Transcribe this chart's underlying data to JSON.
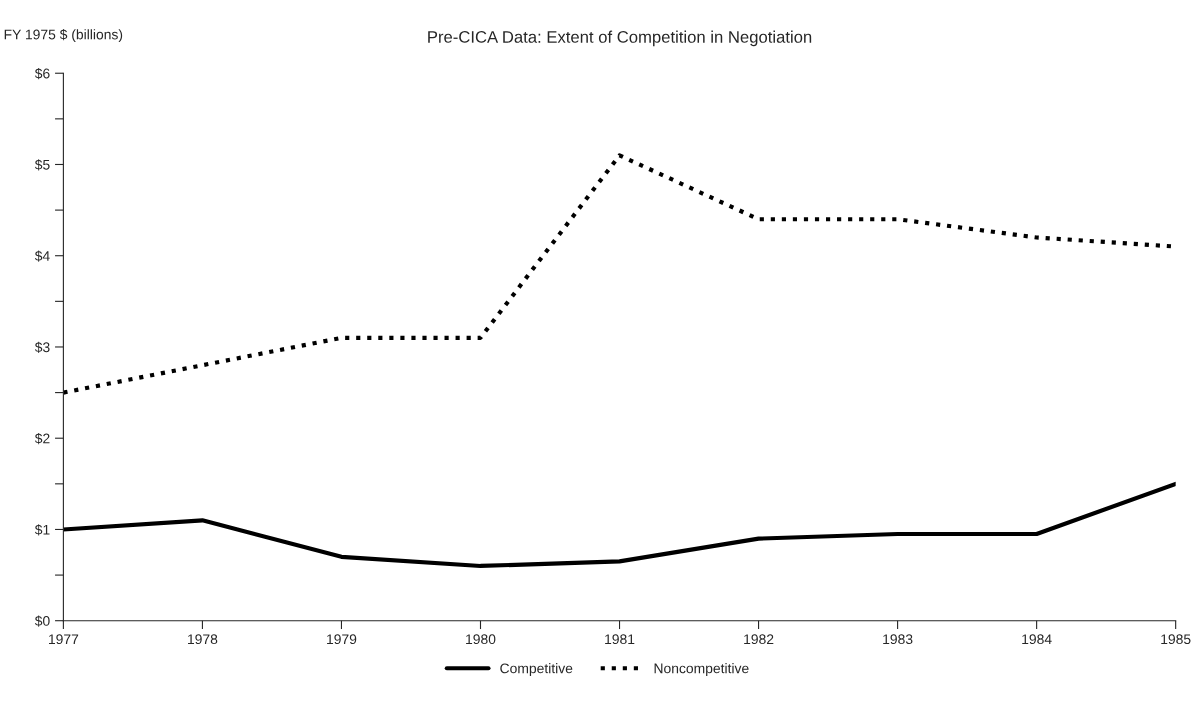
{
  "chart_data": {
    "type": "line",
    "title": "Pre-CICA Data: Extent of Competition in Negotiation",
    "ylabel": "FY 1975 $ (billions)",
    "categories": [
      "1977",
      "1978",
      "1979",
      "1980",
      "1981",
      "1982",
      "1983",
      "1984",
      "1985"
    ],
    "series": [
      {
        "name": "Competitive",
        "color": "#000000",
        "line_style": "solid",
        "values": [
          1.0,
          1.1,
          0.7,
          0.6,
          0.65,
          0.9,
          0.95,
          0.95,
          1.5
        ]
      },
      {
        "name": "Noncompetitive",
        "color": "#000000",
        "line_style": "dotted",
        "values": [
          2.5,
          2.8,
          3.1,
          3.1,
          5.1,
          4.4,
          4.4,
          4.2,
          4.1
        ]
      }
    ],
    "ylim": [
      0,
      6
    ],
    "yticks": [
      {
        "value": 0,
        "label": "$0"
      },
      {
        "value": 0.5,
        "label": null
      },
      {
        "value": 1,
        "label": "$1"
      },
      {
        "value": 1.5,
        "label": null
      },
      {
        "value": 2,
        "label": "$2"
      },
      {
        "value": 2.5,
        "label": null
      },
      {
        "value": 3,
        "label": "$3"
      },
      {
        "value": 3.5,
        "label": null
      },
      {
        "value": 4,
        "label": "$4"
      },
      {
        "value": 4.5,
        "label": null
      },
      {
        "value": 5,
        "label": "$5"
      },
      {
        "value": 5.5,
        "label": null
      },
      {
        "value": 6,
        "label": "$6"
      }
    ],
    "grid": false,
    "legend": "bottom",
    "marker": "none"
  }
}
